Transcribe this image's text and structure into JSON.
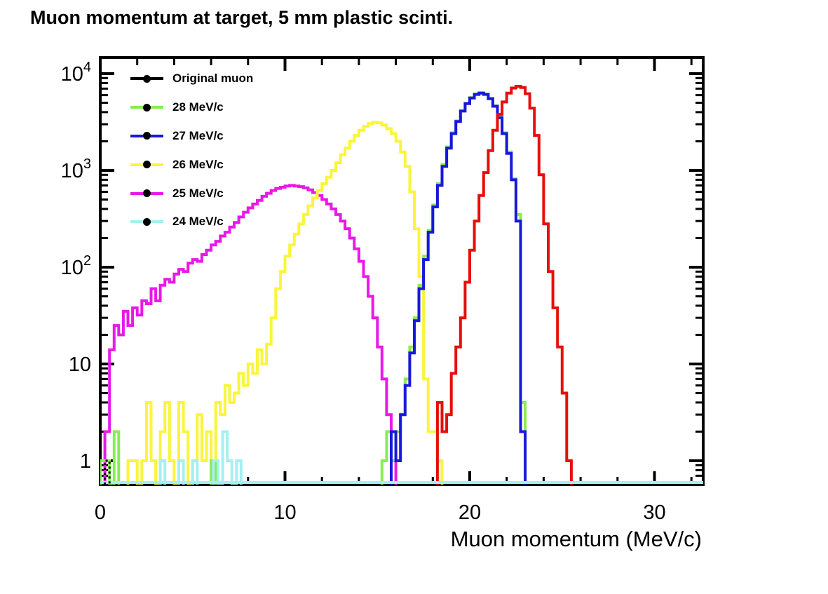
{
  "page": {
    "title": "Muon momentum at target, 5 mm plastic scinti."
  },
  "axes": {
    "x": {
      "title": "Muon momentum (MeV/c)",
      "min": 0,
      "max": 32.6,
      "major_ticks": [
        0,
        10,
        20,
        30
      ],
      "major_tick_labels": [
        "0",
        "10",
        "20",
        "30"
      ],
      "minor_tick_step": 2
    },
    "y": {
      "scale": "log",
      "min": 0.567,
      "max": 14700,
      "decade_exponents": [
        0,
        1,
        2,
        3,
        4
      ],
      "decade_labels": [
        "1",
        "10",
        "10^2",
        "10^3",
        "10^4"
      ]
    }
  },
  "legend": {
    "entries": [
      {
        "label": "Original muon",
        "color": "#000000",
        "marker": "dot"
      },
      {
        "label": "28 MeV/c",
        "color": "#87ee50",
        "marker": "dot"
      },
      {
        "label": "27 MeV/c",
        "color": "#1818dd",
        "marker": "dot"
      },
      {
        "label": "26 MeV/c",
        "color": "#faf53c",
        "marker": "dot"
      },
      {
        "label": "25 MeV/c",
        "color": "#e819e8",
        "marker": "dot"
      },
      {
        "label": "24 MeV/c",
        "color": "#a5f0f0",
        "marker": "dot"
      }
    ]
  },
  "chart_data": {
    "type": "line",
    "subtype": "step-histogram",
    "title": "Muon momentum at target, 5 mm plastic scinti.",
    "xlabel": "Muon momentum (MeV/c)",
    "ylabel": "",
    "xlim": [
      0,
      32.6
    ],
    "ylim": [
      0.567,
      14700
    ],
    "yscale": "log",
    "grid": false,
    "legend_position": "top-left",
    "bin_width": 0.25,
    "series": [
      {
        "name": "25 MeV/c",
        "color": "#e819e8",
        "segments": [
          {
            "start_x": 0.25,
            "values": [
              2,
              14,
              25,
              20,
              35,
              25,
              38,
              32,
              45,
              42,
              60,
              45,
              65,
              75,
              70,
              85,
              95,
              90,
              110,
              120,
              115,
              135,
              150,
              170,
              185,
              210,
              230,
              260,
              290,
              330,
              370,
              410,
              450,
              490,
              540,
              580,
              620,
              650,
              670,
              690,
              700,
              690,
              680,
              660,
              630,
              590,
              550,
              500,
              450,
              400,
              350,
              300,
              250,
              200,
              155,
              115,
              80,
              50,
              30,
              15,
              7,
              3,
              1
            ]
          }
        ]
      },
      {
        "name": "26 MeV/c",
        "color": "#faf53c",
        "segments": [
          {
            "start_x": 1.5,
            "values": [
              1,
              1,
              0,
              1,
              4,
              1,
              0,
              2,
              4,
              1,
              0,
              4,
              2,
              0,
              1,
              3,
              1,
              2,
              0,
              4,
              3,
              6,
              4,
              5,
              8,
              6,
              10,
              8,
              14,
              10,
              16,
              30,
              60,
              90,
              130,
              170,
              220,
              280,
              350,
              430,
              520,
              620,
              730,
              850,
              1000,
              1200,
              1450,
              1700,
              2000,
              2300,
              2600,
              2850,
              3050,
              3150,
              3100,
              2950,
              2700,
              2400,
              2000,
              1550,
              1100,
              600,
              250,
              80,
              7,
              2,
              2,
              1
            ]
          }
        ]
      },
      {
        "name": "28 MeV/c",
        "color": "#87ee50",
        "segments": [
          {
            "start_x": 0.0,
            "values": [
              1,
              1,
              0,
              2
            ]
          },
          {
            "start_x": 6.0,
            "values": [
              1
            ]
          },
          {
            "start_x": 15.25,
            "values": [
              1,
              2,
              1,
              2,
              3,
              7,
              15,
              30,
              65,
              130,
              240,
              440,
              730,
              1150,
              1750,
              2450,
              3250,
              4150,
              4950,
              5650,
              6150,
              6350,
              6150,
              5550,
              4650,
              3550,
              2450,
              1550,
              820,
              350,
              4
            ]
          }
        ]
      },
      {
        "name": "27 MeV/c",
        "color": "#1818dd",
        "segments": [
          {
            "start_x": 15.75,
            "values": [
              2,
              1,
              3,
              6,
              13,
              28,
              60,
              120,
              230,
              420,
              700,
              1100,
              1700,
              2400,
              3200,
              4100,
              4900,
              5600,
              6100,
              6300,
              6100,
              5500,
              4600,
              3500,
              2400,
              1500,
              800,
              300,
              2
            ]
          }
        ]
      },
      {
        "name": "Original muon",
        "color": "#e60f0a",
        "segments": [
          {
            "start_x": 18.25,
            "values": [
              4,
              2,
              3,
              8,
              15,
              30,
              70,
              150,
              300,
              550,
              950,
              1600,
              2600,
              3800,
              5100,
              6300,
              7100,
              7400,
              7200,
              6200,
              4400,
              2300,
              900,
              280,
              90,
              38,
              15,
              5,
              1
            ]
          }
        ]
      },
      {
        "name": "24 MeV/c",
        "color": "#a5f0f0",
        "baseline": true,
        "segments": [
          {
            "start_x": 3.25,
            "values": [
              1
            ]
          },
          {
            "start_x": 4.25,
            "values": [
              1
            ]
          },
          {
            "start_x": 5.0,
            "values": [
              1
            ]
          },
          {
            "start_x": 6.125,
            "values": [
              1,
              0,
              2,
              1,
              0,
              1
            ]
          }
        ]
      },
      {
        "name": "Original muon markers",
        "color": "#000000",
        "style": "dotted",
        "segments": [
          {
            "start_x": 0.25,
            "values": [
              1
            ]
          }
        ]
      }
    ]
  }
}
